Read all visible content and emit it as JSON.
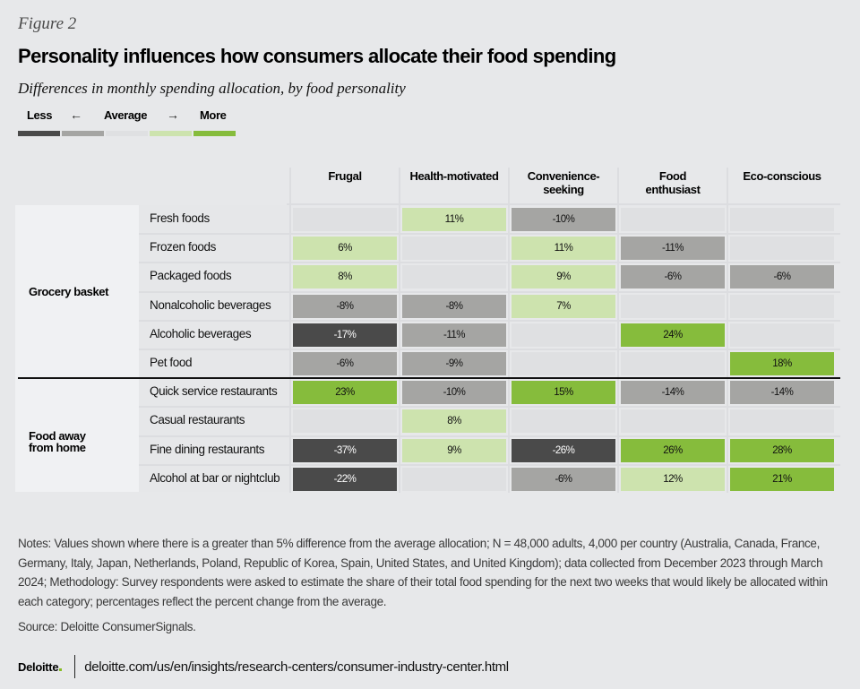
{
  "figure_label": "Figure 2",
  "title": "Personality influences how consumers allocate their food spending",
  "subtitle": "Differences in monthly spending allocation, by food personality",
  "legend": {
    "less": "Less",
    "average": "Average",
    "more": "More",
    "left_arrow": "←",
    "right_arrow": "→",
    "scale": [
      {
        "level": "much-less",
        "color": "#4a4a4a"
      },
      {
        "level": "less",
        "color": "#a5a5a3"
      },
      {
        "level": "average",
        "color": "#dfe0e2"
      },
      {
        "level": "more",
        "color": "#cde3ae"
      },
      {
        "level": "much-more",
        "color": "#86bc3c"
      }
    ]
  },
  "chart_data": {
    "type": "heatmap",
    "title": "Personality influences how consumers allocate their food spending",
    "subtitle": "Differences in monthly spending allocation, by food personality",
    "columns": [
      "Frugal",
      "Health-motivated",
      "Convenience-\nseeking",
      "Food\nenthusiast",
      "Eco-conscious"
    ],
    "groups": [
      {
        "name": "Grocery basket",
        "rows": [
          "Fresh foods",
          "Frozen foods",
          "Packaged foods",
          "Nonalcoholic beverages",
          "Alcoholic beverages",
          "Pet food"
        ]
      },
      {
        "name": "Food away\nfrom home",
        "rows": [
          "Quick service restaurants",
          "Casual restaurants",
          "Fine dining restaurants",
          "Alcohol at bar or nightclub"
        ]
      }
    ],
    "rows": [
      {
        "label": "Fresh foods",
        "group": "Grocery basket",
        "values": [
          null,
          11,
          -10,
          null,
          null
        ]
      },
      {
        "label": "Frozen foods",
        "group": "Grocery basket",
        "values": [
          6,
          null,
          11,
          -11,
          null
        ]
      },
      {
        "label": "Packaged foods",
        "group": "Grocery basket",
        "values": [
          8,
          null,
          9,
          -6,
          -6
        ]
      },
      {
        "label": "Nonalcoholic beverages",
        "group": "Grocery basket",
        "values": [
          -8,
          -8,
          7,
          null,
          null
        ]
      },
      {
        "label": "Alcoholic beverages",
        "group": "Grocery basket",
        "values": [
          -17,
          -11,
          null,
          24,
          null
        ]
      },
      {
        "label": "Pet food",
        "group": "Grocery basket",
        "values": [
          -6,
          -9,
          null,
          null,
          18
        ]
      },
      {
        "label": "Quick service restaurants",
        "group": "Food away from home",
        "values": [
          23,
          -10,
          15,
          -14,
          -14
        ]
      },
      {
        "label": "Casual restaurants",
        "group": "Food away from home",
        "values": [
          null,
          8,
          null,
          null,
          null
        ]
      },
      {
        "label": "Fine dining restaurants",
        "group": "Food away from home",
        "values": [
          -37,
          9,
          -26,
          26,
          28
        ]
      },
      {
        "label": "Alcohol at bar or nightclub",
        "group": "Food away from home",
        "values": [
          -22,
          null,
          -6,
          12,
          21
        ]
      }
    ],
    "unit": "%",
    "color_levels": [
      {
        "range": "<= -15",
        "color": "#4a4a4a",
        "text": "#ffffff"
      },
      {
        "range": "-15 to -5",
        "color": "#a5a5a3",
        "text": "#111111"
      },
      {
        "range": "blank (within 5%)",
        "color": "#dfe0e2",
        "text": "#111111"
      },
      {
        "range": "5 to 15",
        "color": "#cde3ae",
        "text": "#111111"
      },
      {
        "range": ">= 15",
        "color": "#86bc3c",
        "text": "#111111"
      }
    ]
  },
  "notes": "Notes: Values shown where there is a greater than 5% difference from the average allocation; N = 48,000 adults, 4,000 per country (Australia, Canada, France, Germany, Italy, Japan, Netherlands, Poland, Republic of Korea, Spain, United States, and United Kingdom); data collected from December 2023 through March 2024; Methodology: Survey respondents were asked to estimate the share of their total food spending for the next two weeks that would likely be allocated within each category; percentages reflect the percent change from the average.",
  "source": "Source: Deloitte ConsumerSignals.",
  "footer": {
    "logo": "Deloitte",
    "url": "deloitte.com/us/en/insights/research-centers/consumer-industry-center.html"
  }
}
